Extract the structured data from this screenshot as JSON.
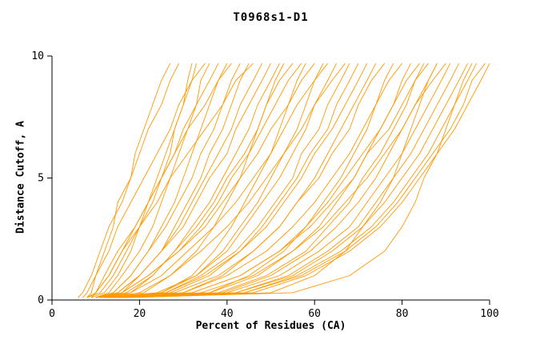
{
  "colors": {
    "line": "#ff9900",
    "axis": "#000000",
    "background": "#ffffff",
    "text": "#000000"
  },
  "chart_data": {
    "type": "line",
    "title": "T0968s1-D1",
    "xlabel": "Percent of Residues (CA)",
    "ylabel": "Distance Cutoff, A",
    "xlim": [
      0,
      100
    ],
    "ylim": [
      0,
      10
    ],
    "x_ticks": [
      0,
      20,
      40,
      60,
      80,
      100
    ],
    "y_ticks": [
      0,
      5,
      10
    ],
    "grid": false,
    "legend": "none",
    "line_color": "#ff9900",
    "cutoffs": [
      0.1,
      0.3,
      1,
      2,
      3,
      4,
      5,
      6,
      7,
      8,
      9,
      9.7
    ],
    "curves": [
      [
        8,
        9,
        10,
        12,
        14,
        15,
        18,
        19,
        21,
        23,
        25,
        27
      ],
      [
        9,
        12,
        15,
        18,
        20,
        23,
        25,
        27,
        28,
        30,
        32,
        33
      ],
      [
        7,
        8,
        10,
        13,
        15,
        18,
        21,
        24,
        27,
        29,
        32,
        35
      ],
      [
        10,
        13,
        16,
        20,
        23,
        25,
        27,
        29,
        31,
        33,
        34,
        36
      ],
      [
        8,
        10,
        13,
        16,
        19,
        22,
        25,
        28,
        30,
        33,
        36,
        38
      ],
      [
        11,
        14,
        18,
        22,
        25,
        28,
        30,
        32,
        34,
        36,
        38,
        40
      ],
      [
        9,
        10,
        12,
        15,
        19,
        22,
        25,
        28,
        31,
        35,
        38,
        41
      ],
      [
        10,
        14,
        18,
        22,
        26,
        29,
        32,
        34,
        37,
        39,
        41,
        43
      ],
      [
        12,
        16,
        20,
        25,
        28,
        31,
        34,
        36,
        39,
        41,
        43,
        45
      ],
      [
        9,
        10,
        13,
        16,
        20,
        24,
        27,
        31,
        35,
        39,
        42,
        46
      ],
      [
        11,
        15,
        20,
        25,
        29,
        32,
        35,
        38,
        41,
        43,
        46,
        48
      ],
      [
        10,
        15,
        20,
        25,
        30,
        33,
        36,
        40,
        42,
        45,
        48,
        50
      ],
      [
        13,
        18,
        23,
        28,
        32,
        36,
        39,
        42,
        45,
        47,
        50,
        52
      ],
      [
        10,
        21,
        27,
        33,
        37,
        40,
        43,
        45,
        47,
        49,
        51,
        53
      ],
      [
        12,
        17,
        23,
        28,
        33,
        37,
        40,
        44,
        47,
        49,
        52,
        55
      ],
      [
        11,
        16,
        22,
        29,
        34,
        38,
        41,
        45,
        48,
        51,
        54,
        57
      ],
      [
        14,
        25,
        32,
        37,
        41,
        44,
        47,
        50,
        52,
        54,
        56,
        58
      ],
      [
        10,
        16,
        22,
        29,
        35,
        39,
        43,
        47,
        50,
        54,
        57,
        60
      ],
      [
        13,
        25,
        33,
        39,
        43,
        47,
        50,
        53,
        56,
        58,
        60,
        62
      ],
      [
        12,
        18,
        25,
        31,
        37,
        42,
        46,
        50,
        53,
        56,
        60,
        63
      ],
      [
        11,
        24,
        33,
        40,
        44,
        48,
        52,
        55,
        58,
        60,
        63,
        65
      ],
      [
        14,
        20,
        27,
        34,
        40,
        45,
        49,
        53,
        57,
        60,
        64,
        67
      ],
      [
        12,
        26,
        34,
        42,
        47,
        51,
        55,
        57,
        61,
        63,
        66,
        68
      ],
      [
        13,
        27,
        36,
        43,
        48,
        52,
        56,
        59,
        63,
        65,
        68,
        70
      ],
      [
        11,
        26,
        35,
        43,
        49,
        53,
        57,
        60,
        64,
        67,
        70,
        72
      ],
      [
        15,
        30,
        39,
        46,
        52,
        56,
        60,
        63,
        66,
        69,
        72,
        74
      ],
      [
        12,
        28,
        38,
        46,
        52,
        56,
        61,
        64,
        68,
        70,
        73,
        76
      ],
      [
        13,
        36,
        45,
        53,
        58,
        62,
        66,
        69,
        72,
        74,
        76,
        78
      ],
      [
        14,
        30,
        40,
        49,
        55,
        60,
        64,
        68,
        71,
        74,
        77,
        80
      ],
      [
        12,
        36,
        47,
        55,
        61,
        65,
        69,
        72,
        75,
        78,
        80,
        82
      ],
      [
        15,
        32,
        43,
        52,
        58,
        63,
        67,
        71,
        75,
        78,
        81,
        84
      ],
      [
        13,
        38,
        49,
        58,
        63,
        68,
        71,
        75,
        78,
        81,
        83,
        85
      ],
      [
        14,
        32,
        43,
        52,
        59,
        64,
        69,
        72,
        77,
        80,
        83,
        86
      ],
      [
        12,
        39,
        50,
        59,
        65,
        70,
        74,
        77,
        80,
        83,
        86,
        88
      ],
      [
        16,
        34,
        46,
        55,
        62,
        67,
        72,
        76,
        80,
        83,
        87,
        90
      ],
      [
        13,
        40,
        52,
        61,
        68,
        72,
        76,
        80,
        83,
        86,
        89,
        91
      ],
      [
        15,
        42,
        54,
        63,
        70,
        74,
        78,
        82,
        85,
        88,
        91,
        93
      ],
      [
        14,
        42,
        55,
        64,
        71,
        76,
        80,
        84,
        87,
        90,
        93,
        95
      ],
      [
        16,
        44,
        56,
        66,
        73,
        78,
        82,
        86,
        89,
        92,
        95,
        97
      ],
      [
        15,
        44,
        57,
        67,
        74,
        79,
        83,
        87,
        91,
        94,
        96,
        99
      ],
      [
        17,
        46,
        58,
        68,
        75,
        80,
        84,
        88,
        92,
        95,
        98,
        100
      ],
      [
        18,
        55,
        68,
        76,
        80,
        83,
        85,
        88,
        90,
        92,
        94,
        96
      ],
      [
        16,
        50,
        60,
        67,
        71,
        75,
        78,
        80,
        82,
        84,
        86,
        88
      ],
      [
        6,
        7,
        9,
        11,
        13,
        16,
        18,
        20,
        22,
        25,
        27,
        29
      ],
      [
        8,
        11,
        14,
        17,
        20,
        22,
        24,
        26,
        28,
        30,
        31,
        32
      ]
    ]
  }
}
